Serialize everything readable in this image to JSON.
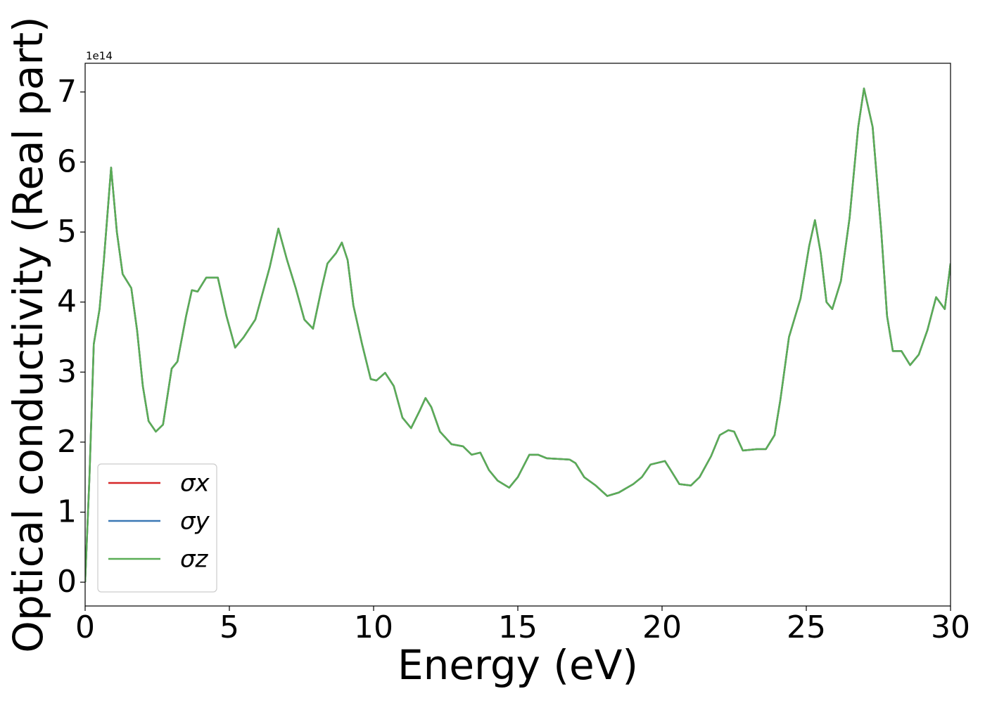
{
  "chart_data": {
    "type": "line",
    "xlabel": "Energy (eV)",
    "ylabel": "Optical conductivity (Real part)",
    "y_offset_label": "1e14",
    "x": [
      0,
      0.15,
      0.3,
      0.5,
      0.65,
      0.9,
      1.1,
      1.3,
      1.6,
      1.8,
      2.0,
      2.2,
      2.45,
      2.7,
      3.0,
      3.2,
      3.5,
      3.7,
      3.9,
      4.2,
      4.6,
      4.9,
      5.2,
      5.5,
      5.9,
      6.1,
      6.4,
      6.7,
      7.0,
      7.3,
      7.6,
      7.9,
      8.2,
      8.4,
      8.7,
      8.9,
      9.1,
      9.3,
      9.6,
      9.9,
      10.1,
      10.4,
      10.7,
      11.0,
      11.3,
      11.6,
      11.8,
      12.0,
      12.3,
      12.7,
      13.1,
      13.4,
      13.7,
      14.0,
      14.3,
      14.7,
      15.0,
      15.4,
      15.7,
      16.0,
      16.8,
      17.0,
      17.3,
      17.7,
      18.1,
      18.5,
      19.0,
      19.3,
      19.6,
      20.1,
      20.3,
      20.6,
      21.0,
      21.3,
      21.7,
      22.0,
      22.3,
      22.5,
      22.8,
      23.3,
      23.6,
      23.9,
      24.1,
      24.4,
      24.8,
      25.1,
      25.3,
      25.5,
      25.7,
      25.9,
      26.2,
      26.5,
      26.8,
      27.0,
      27.3,
      27.6,
      27.8,
      28.0,
      28.3,
      28.6,
      28.9,
      29.2,
      29.5,
      29.8,
      30.0
    ],
    "series": [
      {
        "name": "σx",
        "color": "#d62728",
        "values": [
          0,
          1.5,
          3.4,
          3.9,
          4.6,
          5.92,
          5.0,
          4.4,
          4.2,
          3.6,
          2.8,
          2.3,
          2.15,
          2.25,
          3.05,
          3.15,
          3.8,
          4.17,
          4.15,
          4.35,
          4.35,
          3.8,
          3.35,
          3.5,
          3.75,
          4.05,
          4.5,
          5.05,
          4.6,
          4.2,
          3.75,
          3.62,
          4.2,
          4.55,
          4.7,
          4.85,
          4.6,
          3.95,
          3.4,
          2.9,
          2.88,
          2.99,
          2.8,
          2.35,
          2.2,
          2.45,
          2.63,
          2.5,
          2.15,
          1.97,
          1.94,
          1.82,
          1.85,
          1.6,
          1.45,
          1.35,
          1.5,
          1.82,
          1.82,
          1.77,
          1.75,
          1.7,
          1.5,
          1.38,
          1.23,
          1.28,
          1.4,
          1.5,
          1.68,
          1.73,
          1.6,
          1.4,
          1.38,
          1.5,
          1.8,
          2.1,
          2.17,
          2.15,
          1.88,
          1.9,
          1.9,
          2.1,
          2.6,
          3.5,
          4.05,
          4.8,
          5.17,
          4.7,
          4.0,
          3.9,
          4.3,
          5.2,
          6.5,
          7.05,
          6.5,
          5.0,
          3.8,
          3.3,
          3.3,
          3.1,
          3.25,
          3.6,
          4.07,
          3.9,
          4.55
        ]
      },
      {
        "name": "σy",
        "color": "#3a78b5",
        "values": [
          0,
          1.5,
          3.4,
          3.9,
          4.6,
          5.92,
          5.0,
          4.4,
          4.2,
          3.6,
          2.8,
          2.3,
          2.15,
          2.25,
          3.05,
          3.15,
          3.8,
          4.17,
          4.15,
          4.35,
          4.35,
          3.8,
          3.35,
          3.5,
          3.75,
          4.05,
          4.5,
          5.05,
          4.6,
          4.2,
          3.75,
          3.62,
          4.2,
          4.55,
          4.7,
          4.85,
          4.6,
          3.95,
          3.4,
          2.9,
          2.88,
          2.99,
          2.8,
          2.35,
          2.2,
          2.45,
          2.63,
          2.5,
          2.15,
          1.97,
          1.94,
          1.82,
          1.85,
          1.6,
          1.45,
          1.35,
          1.5,
          1.82,
          1.82,
          1.77,
          1.75,
          1.7,
          1.5,
          1.38,
          1.23,
          1.28,
          1.4,
          1.5,
          1.68,
          1.73,
          1.6,
          1.4,
          1.38,
          1.5,
          1.8,
          2.1,
          2.17,
          2.15,
          1.88,
          1.9,
          1.9,
          2.1,
          2.6,
          3.5,
          4.05,
          4.8,
          5.17,
          4.7,
          4.0,
          3.9,
          4.3,
          5.2,
          6.5,
          7.05,
          6.5,
          5.0,
          3.8,
          3.3,
          3.3,
          3.1,
          3.25,
          3.6,
          4.07,
          3.9,
          4.55
        ]
      },
      {
        "name": "σz",
        "color": "#5aad56",
        "values": [
          0,
          1.5,
          3.4,
          3.9,
          4.6,
          5.92,
          5.0,
          4.4,
          4.2,
          3.6,
          2.8,
          2.3,
          2.15,
          2.25,
          3.05,
          3.15,
          3.8,
          4.17,
          4.15,
          4.35,
          4.35,
          3.8,
          3.35,
          3.5,
          3.75,
          4.05,
          4.5,
          5.05,
          4.6,
          4.2,
          3.75,
          3.62,
          4.2,
          4.55,
          4.7,
          4.85,
          4.6,
          3.95,
          3.4,
          2.9,
          2.88,
          2.99,
          2.8,
          2.35,
          2.2,
          2.45,
          2.63,
          2.5,
          2.15,
          1.97,
          1.94,
          1.82,
          1.85,
          1.6,
          1.45,
          1.35,
          1.5,
          1.82,
          1.82,
          1.77,
          1.75,
          1.7,
          1.5,
          1.38,
          1.23,
          1.28,
          1.4,
          1.5,
          1.68,
          1.73,
          1.6,
          1.4,
          1.38,
          1.5,
          1.8,
          2.1,
          2.17,
          2.15,
          1.88,
          1.9,
          1.9,
          2.1,
          2.6,
          3.5,
          4.05,
          4.8,
          5.17,
          4.7,
          4.0,
          3.9,
          4.3,
          5.2,
          6.5,
          7.05,
          6.5,
          5.0,
          3.8,
          3.3,
          3.3,
          3.1,
          3.25,
          3.6,
          4.07,
          3.9,
          4.55
        ]
      }
    ],
    "xlim": [
      0,
      30
    ],
    "xticks": [
      0,
      5,
      10,
      15,
      20,
      25,
      30
    ],
    "ylim": [
      -0.34,
      7.41
    ],
    "yticks": [
      0,
      1,
      2,
      3,
      4,
      5,
      6,
      7
    ],
    "grid": false,
    "legend": "lower left"
  }
}
